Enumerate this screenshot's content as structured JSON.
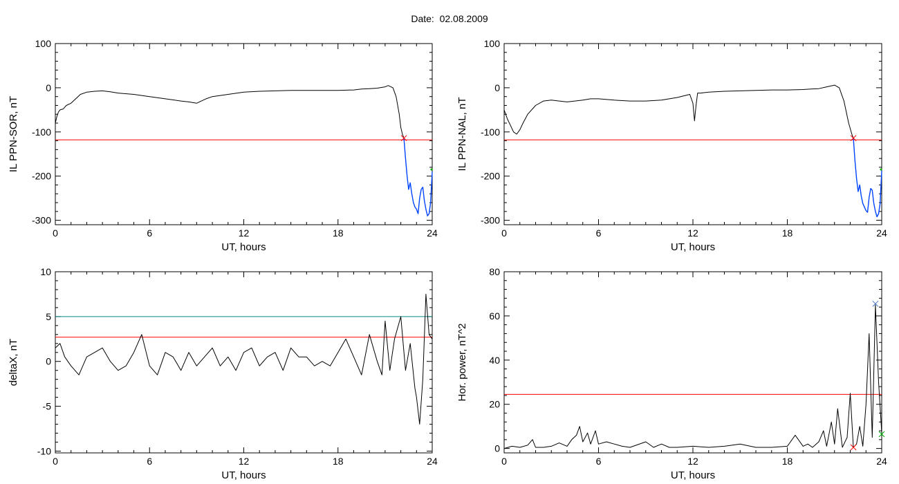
{
  "figure": {
    "title": "Date:  02.08.2009"
  },
  "chart_data": [
    {
      "type": "line",
      "xlabel": "UT, hours",
      "ylabel": "IL PPN-SOR, nT",
      "xlim": [
        0,
        24
      ],
      "ylim": [
        -310,
        100
      ],
      "xticks": [
        0,
        6,
        12,
        18,
        24
      ],
      "yticks": [
        100,
        0,
        -100,
        -200,
        -300
      ],
      "colors": {
        "data": "#000000",
        "threshold": "#ff0000",
        "blue": "#0044ff",
        "green": "#00aa00"
      },
      "threshold": -118,
      "threshold_marker": {
        "x": 22.2,
        "y": -114
      },
      "series": [
        {
          "color": "#000000",
          "x": [
            0,
            0.1,
            0.2,
            0.3,
            0.5,
            0.7,
            1,
            1.3,
            1.6,
            2,
            2.5,
            3,
            3.5,
            4,
            5,
            6,
            7,
            8,
            8.5,
            9,
            9.3,
            9.6,
            10,
            11,
            12,
            13,
            14,
            15,
            16,
            17,
            18,
            19,
            19.5,
            20,
            20.5,
            21,
            21.2,
            21.5,
            21.7,
            21.9,
            22,
            22.1,
            22.2
          ],
          "y": [
            -80,
            -65,
            -55,
            -50,
            -48,
            -40,
            -35,
            -25,
            -15,
            -10,
            -8,
            -7,
            -9,
            -12,
            -15,
            -20,
            -25,
            -30,
            -32,
            -35,
            -30,
            -25,
            -20,
            -15,
            -10,
            -8,
            -7,
            -6,
            -6,
            -6,
            -6,
            -5,
            -3,
            -2,
            -1,
            2,
            5,
            0,
            -20,
            -60,
            -90,
            -105,
            -114
          ]
        },
        {
          "color": "#0044ff",
          "x": [
            22.2,
            22.3,
            22.4,
            22.5,
            22.6,
            22.7,
            22.8,
            22.9,
            23.0,
            23.1,
            23.2,
            23.3,
            23.4,
            23.5,
            23.6,
            23.7,
            23.8,
            23.9,
            24.0
          ],
          "y": [
            -114,
            -160,
            -200,
            -230,
            -215,
            -240,
            -260,
            -270,
            -275,
            -285,
            -250,
            -230,
            -225,
            -255,
            -275,
            -290,
            -285,
            -260,
            -190
          ]
        }
      ],
      "extra_points": [
        {
          "x": 24.0,
          "y": -185,
          "color": "#00aa00"
        }
      ]
    },
    {
      "type": "line",
      "xlabel": "UT, hours",
      "ylabel": "IL PPN-NAL, nT",
      "xlim": [
        0,
        24
      ],
      "ylim": [
        -310,
        100
      ],
      "xticks": [
        0,
        6,
        12,
        18,
        24
      ],
      "yticks": [
        100,
        0,
        -100,
        -200,
        -300
      ],
      "colors": {
        "data": "#000000",
        "threshold": "#ff0000",
        "blue": "#0044ff",
        "green": "#00aa00"
      },
      "threshold": -118,
      "threshold_marker": {
        "x": 22.2,
        "y": -114
      },
      "series": [
        {
          "color": "#000000",
          "x": [
            0,
            0.2,
            0.4,
            0.6,
            0.8,
            1,
            1.2,
            1.5,
            2,
            2.5,
            3,
            3.5,
            4,
            4.5,
            5,
            5.5,
            6,
            7,
            8,
            9,
            10,
            11,
            11.8,
            12,
            12.1,
            12.2,
            12.3,
            12.5,
            13,
            14,
            15,
            16,
            17,
            18,
            19,
            19.5,
            20,
            20.5,
            21,
            21.3,
            21.6,
            21.9,
            22.1,
            22.2
          ],
          "y": [
            -50,
            -70,
            -85,
            -100,
            -105,
            -95,
            -80,
            -60,
            -40,
            -30,
            -28,
            -30,
            -32,
            -30,
            -28,
            -25,
            -25,
            -28,
            -30,
            -30,
            -28,
            -22,
            -15,
            -35,
            -75,
            -40,
            -12,
            -12,
            -10,
            -8,
            -7,
            -6,
            -5,
            -5,
            -4,
            -3,
            -2,
            2,
            6,
            0,
            -30,
            -80,
            -105,
            -114
          ]
        },
        {
          "color": "#0044ff",
          "x": [
            22.2,
            22.3,
            22.4,
            22.5,
            22.6,
            22.7,
            22.8,
            22.9,
            23.0,
            23.1,
            23.2,
            23.3,
            23.4,
            23.5,
            23.6,
            23.7,
            23.8,
            23.9,
            24.0
          ],
          "y": [
            -114,
            -165,
            -205,
            -235,
            -220,
            -245,
            -262,
            -270,
            -278,
            -282,
            -248,
            -228,
            -232,
            -262,
            -280,
            -292,
            -285,
            -262,
            -188
          ]
        }
      ],
      "extra_points": [
        {
          "x": 24.0,
          "y": -185,
          "color": "#00aa00"
        }
      ]
    },
    {
      "type": "line",
      "xlabel": "UT, hours",
      "ylabel": "deltaX, nT",
      "xlim": [
        0,
        24
      ],
      "ylim": [
        -10.2,
        10
      ],
      "xticks": [
        0,
        6,
        12,
        18,
        24
      ],
      "yticks": [
        10,
        5,
        0,
        -5,
        -10
      ],
      "colors": {
        "data": "#000000",
        "threshold": "#ff0000",
        "blue": "#008b8b"
      },
      "threshold": 2.7,
      "threshold2": 5.0,
      "series": [
        {
          "color": "#000000",
          "x": [
            0,
            0.3,
            0.6,
            1,
            1.5,
            2,
            2.5,
            3,
            3.5,
            4,
            4.5,
            5,
            5.5,
            6,
            6.5,
            7,
            7.5,
            8,
            8.5,
            9,
            9.5,
            10,
            10.5,
            11,
            11.5,
            12,
            12.5,
            13,
            13.5,
            14,
            14.5,
            15,
            15.5,
            16,
            16.5,
            17,
            17.5,
            18,
            18.5,
            19,
            19.5,
            20,
            20.5,
            20.8,
            21,
            21.3,
            21.6,
            22,
            22.3,
            22.6,
            22.9,
            23,
            23.2,
            23.4,
            23.6,
            23.8,
            24
          ],
          "y": [
            1.5,
            2.0,
            0.5,
            -0.5,
            -1.5,
            0.5,
            1.0,
            1.5,
            0.0,
            -1.0,
            -0.5,
            1.0,
            3.0,
            -0.5,
            -1.5,
            1.0,
            0.5,
            -1.0,
            1.0,
            -0.5,
            0.5,
            1.5,
            -0.5,
            0.5,
            -1.0,
            1.0,
            1.5,
            -0.5,
            0.5,
            1.0,
            -1.0,
            1.5,
            0.5,
            0.5,
            -0.5,
            0.0,
            -0.5,
            1.0,
            2.5,
            0.5,
            -1.5,
            3.0,
            0.0,
            -1.5,
            4.5,
            -1.0,
            2.5,
            5.0,
            -1.0,
            2.0,
            -3.0,
            -4.0,
            -7.0,
            -2.0,
            7.5,
            3.0,
            2.5
          ]
        }
      ]
    },
    {
      "type": "line",
      "xlabel": "UT, hours",
      "ylabel": "Hor. power, nT^2",
      "xlim": [
        0,
        24
      ],
      "ylim": [
        -2,
        80
      ],
      "xticks": [
        0,
        6,
        12,
        18,
        24
      ],
      "yticks": [
        80,
        60,
        40,
        20,
        0
      ],
      "colors": {
        "data": "#000000",
        "threshold": "#ff0000",
        "blue": "#4477cc",
        "green": "#00aa00"
      },
      "threshold": 24.5,
      "markers": [
        {
          "x": 23.6,
          "y": 65.5,
          "color": "#4477cc"
        },
        {
          "x": 22.2,
          "y": 0.5,
          "color": "#ff0000"
        },
        {
          "x": 24.0,
          "y": 6.5,
          "color": "#00aa00"
        }
      ],
      "series": [
        {
          "color": "#000000",
          "x": [
            0,
            0.5,
            1,
            1.5,
            1.8,
            2,
            2.5,
            3,
            3.5,
            4,
            4.3,
            4.6,
            4.8,
            5,
            5.3,
            5.5,
            5.8,
            6,
            6.5,
            7,
            7.5,
            8,
            9,
            9.5,
            10,
            10.5,
            11,
            12,
            13,
            14,
            15,
            16,
            17,
            18,
            18.5,
            19,
            19.3,
            19.6,
            20,
            20.3,
            20.5,
            20.8,
            21,
            21.2,
            21.5,
            21.8,
            22,
            22.2,
            22.4,
            22.6,
            22.8,
            23,
            23.2,
            23.4,
            23.6,
            23.8,
            24
          ],
          "y": [
            0,
            1,
            0.5,
            1.5,
            4,
            0.5,
            0.5,
            1,
            2.5,
            1,
            4,
            6,
            10,
            3,
            7,
            2,
            8,
            2,
            3,
            2,
            1,
            0.5,
            3,
            0.5,
            2,
            0.5,
            0.5,
            1,
            0.5,
            1,
            2,
            0.5,
            0.5,
            1,
            6,
            1,
            2,
            0.5,
            3,
            8,
            1,
            12,
            2,
            18,
            0.5,
            5,
            25,
            0.5,
            2,
            10,
            1,
            20,
            52,
            5,
            65,
            30,
            7
          ]
        }
      ]
    }
  ]
}
